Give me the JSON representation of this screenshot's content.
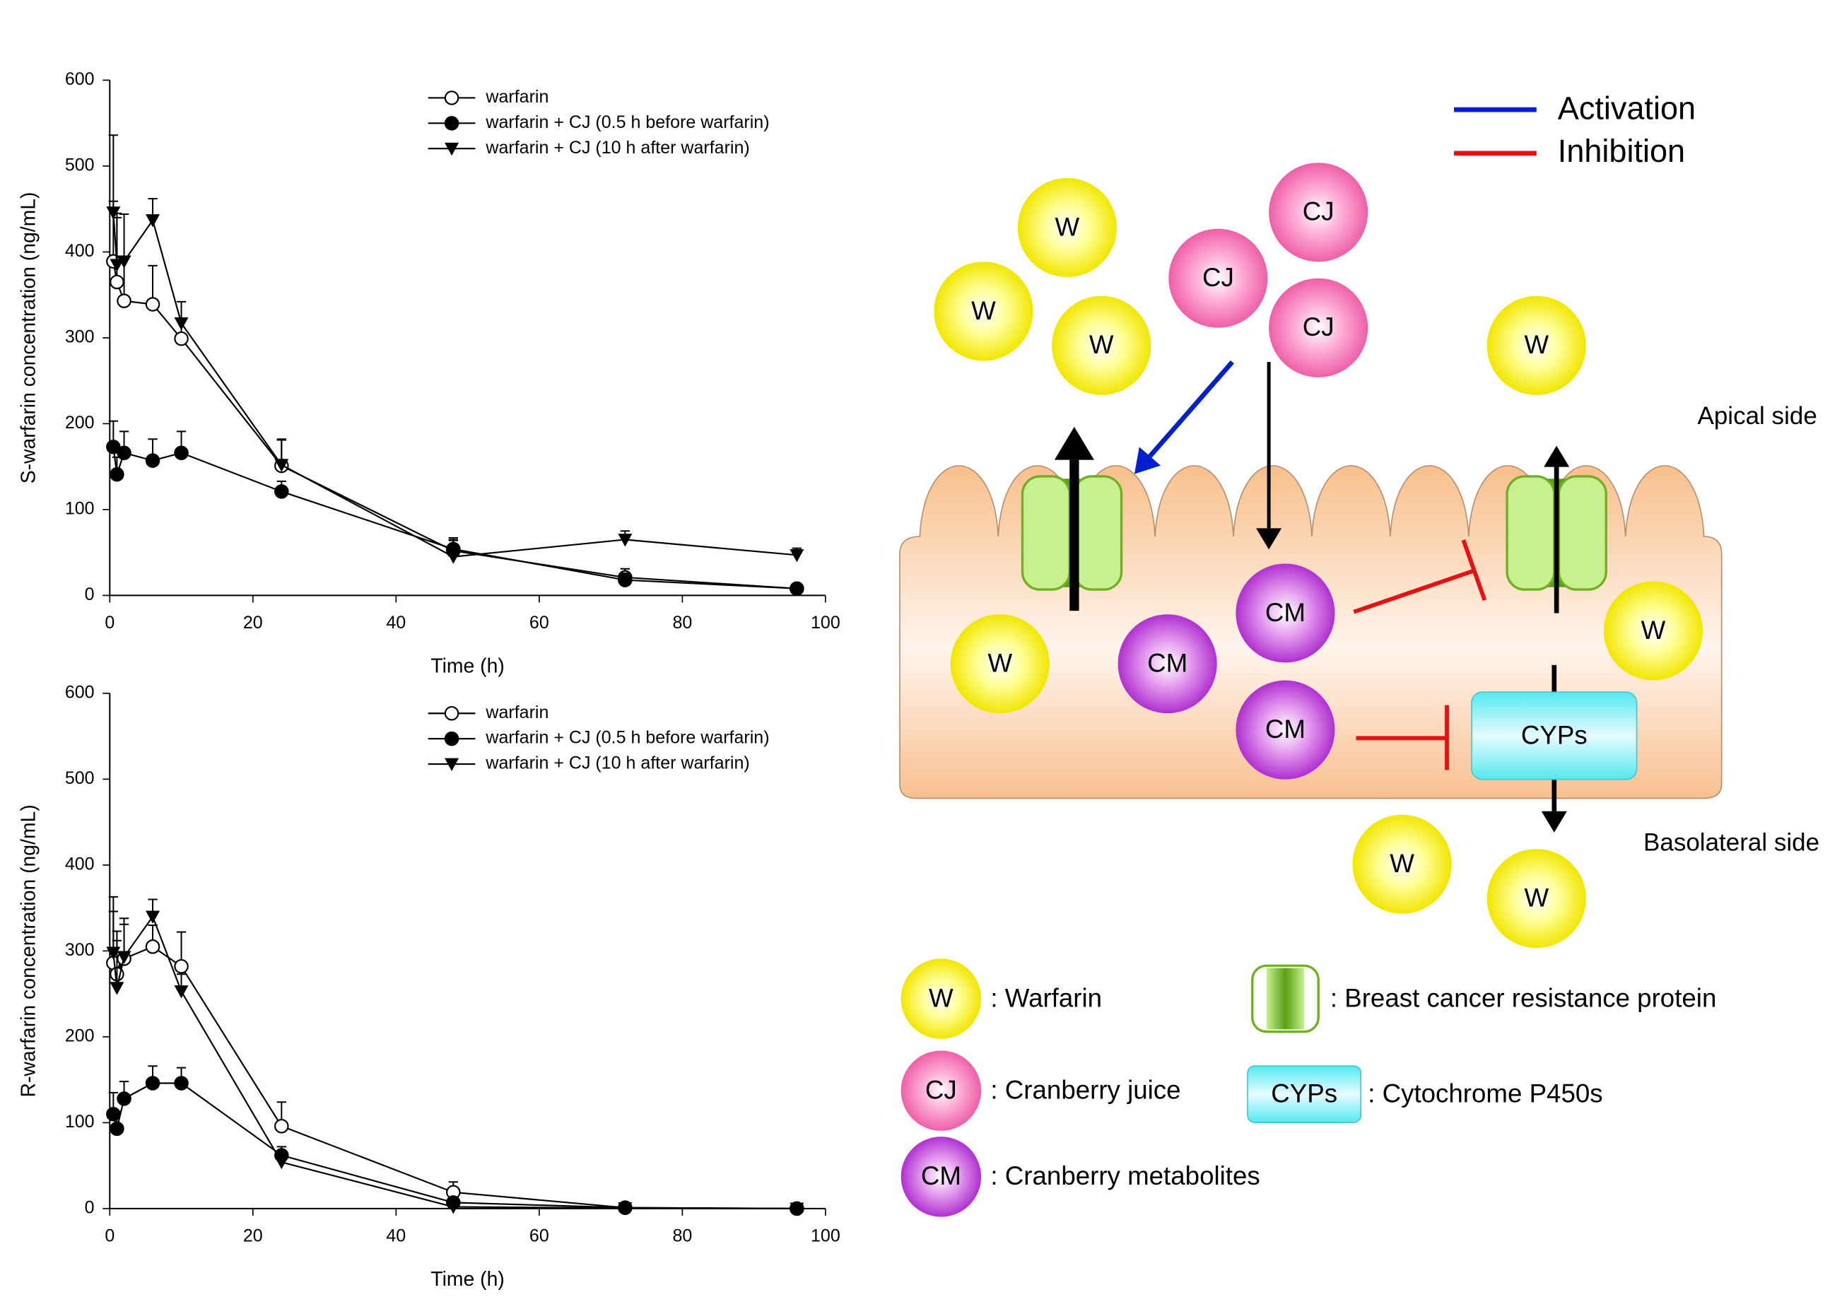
{
  "chart_data": [
    {
      "type": "line",
      "xlabel": "Time (h)",
      "ylabel": "S-warfarin concentration (ng/mL)",
      "xlim": [
        0,
        100
      ],
      "xticks": [
        0,
        20,
        40,
        60,
        80,
        100
      ],
      "ylim": [
        0,
        600
      ],
      "yticks": [
        0,
        100,
        200,
        300,
        400,
        500,
        600
      ],
      "x": [
        0.5,
        1,
        2,
        6,
        10,
        24,
        48,
        72,
        96
      ],
      "series": [
        {
          "name": "warfarin",
          "color": "#000000",
          "marker": "circle-open",
          "values": [
            389,
            365,
            343,
            339,
            299,
            151,
            52,
            21,
            8
          ],
          "errors": [
            70,
            75,
            50,
            45,
            20,
            30,
            15,
            10,
            5
          ]
        },
        {
          "name": "warfarin + CJ (0.5 h before warfarin)",
          "color": "#000000",
          "marker": "circle-filled",
          "values": [
            173,
            141,
            166,
            157,
            166,
            121,
            54,
            18,
            8
          ],
          "errors": [
            30,
            20,
            25,
            25,
            25,
            12,
            10,
            8,
            4
          ]
        },
        {
          "name": "warfarin + CJ (10 h after warfarin)",
          "color": "#000000",
          "marker": "triangle-down",
          "values": [
            446,
            385,
            389,
            437,
            317,
            152,
            45,
            65,
            47
          ],
          "errors": [
            90,
            60,
            55,
            25,
            25,
            30,
            20,
            10,
            8
          ]
        }
      ]
    },
    {
      "type": "line",
      "xlabel": "Time (h)",
      "ylabel": "R-warfarin concentration (ng/mL)",
      "xlim": [
        0,
        100
      ],
      "xticks": [
        0,
        20,
        40,
        60,
        80,
        100
      ],
      "ylim": [
        0,
        600
      ],
      "yticks": [
        0,
        100,
        200,
        300,
        400,
        500,
        600
      ],
      "x": [
        0.5,
        1,
        2,
        6,
        10,
        24,
        48,
        72,
        96
      ],
      "series": [
        {
          "name": "warfarin",
          "color": "#000000",
          "marker": "circle-open",
          "values": [
            286,
            273,
            291,
            305,
            282,
            96,
            19,
            1,
            0
          ],
          "errors": [
            60,
            50,
            40,
            25,
            40,
            28,
            12,
            0,
            0
          ]
        },
        {
          "name": "warfarin + CJ (0.5 h before warfarin)",
          "color": "#000000",
          "marker": "circle-filled",
          "values": [
            110,
            93,
            128,
            146,
            146,
            62,
            7,
            1,
            0
          ],
          "errors": [
            25,
            20,
            20,
            20,
            18,
            10,
            5,
            0,
            0
          ]
        },
        {
          "name": "warfarin + CJ (10 h after warfarin)",
          "color": "#000000",
          "marker": "triangle-down",
          "values": [
            298,
            257,
            293,
            340,
            253,
            54,
            2,
            0.5,
            0
          ],
          "errors": [
            65,
            55,
            45,
            20,
            20,
            10,
            4,
            0,
            0
          ]
        }
      ]
    }
  ],
  "diagram": {
    "activation": "Activation",
    "inhibition": "Inhibition",
    "apical": "Apical side",
    "basolateral": "Basolateral side",
    "nodes": [
      "W",
      "W",
      "W",
      "CJ",
      "CJ",
      "CJ",
      "W",
      "W",
      "CM",
      "CM",
      "CM",
      "W",
      "CYPs",
      "W",
      "W"
    ],
    "legend": [
      {
        "symbol": "W",
        "text": ": Warfarin"
      },
      {
        "symbol": "CJ",
        "text": ": Cranberry juice"
      },
      {
        "symbol": "CM",
        "text": ": Cranberry metabolites"
      },
      {
        "text": ": Breast cancer resistance protein"
      },
      {
        "symbol": "CYPs",
        "text": ": Cytochrome P450s"
      }
    ]
  }
}
